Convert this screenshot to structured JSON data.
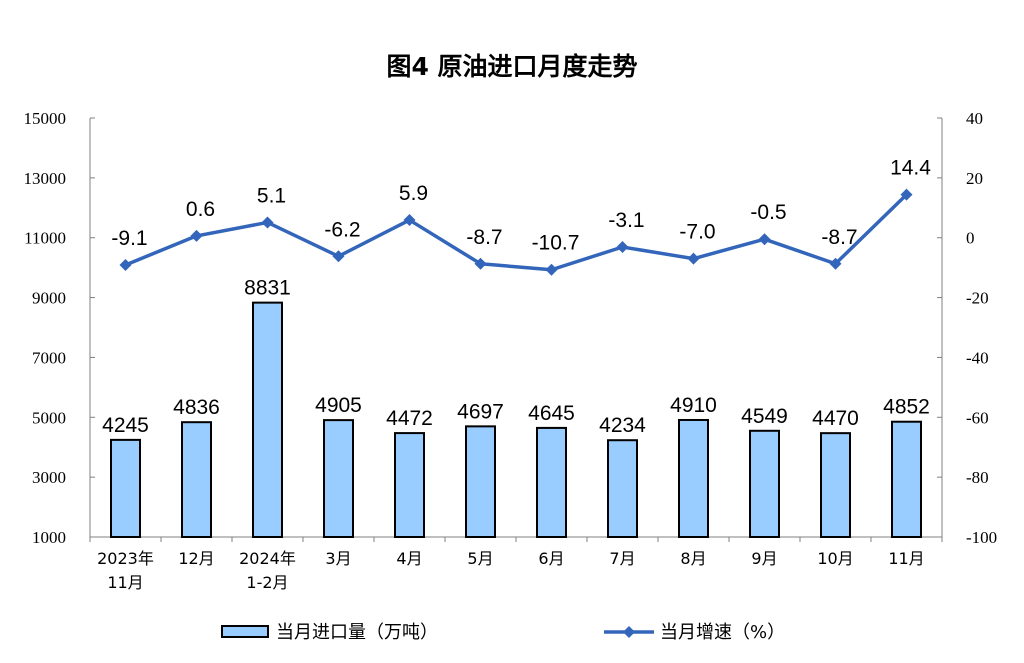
{
  "chart_data": {
    "type": "bar+line",
    "title": "图4  原油进口月度走势",
    "categories": [
      {
        "line1": "2023年",
        "line2": "11月"
      },
      {
        "line1": "12月",
        "line2": ""
      },
      {
        "line1": "2024年",
        "line2": "1-2月"
      },
      {
        "line1": "3月",
        "line2": ""
      },
      {
        "line1": "4月",
        "line2": ""
      },
      {
        "line1": "5月",
        "line2": ""
      },
      {
        "line1": "6月",
        "line2": ""
      },
      {
        "line1": "7月",
        "line2": ""
      },
      {
        "line1": "8月",
        "line2": ""
      },
      {
        "line1": "9月",
        "line2": ""
      },
      {
        "line1": "10月",
        "line2": ""
      },
      {
        "line1": "11月",
        "line2": ""
      }
    ],
    "series": [
      {
        "name": "当月进口量（万吨）",
        "type": "bar",
        "axis": "left",
        "values": [
          4245,
          4836,
          8831,
          4905,
          4472,
          4697,
          4645,
          4234,
          4910,
          4549,
          4470,
          4852
        ],
        "labels": [
          "4245",
          "4836",
          "8831",
          "4905",
          "4472",
          "4697",
          "4645",
          "4234",
          "4910",
          "4549",
          "4470",
          "4852"
        ]
      },
      {
        "name": "当月增速（%）",
        "type": "line",
        "axis": "right",
        "values": [
          -9.1,
          0.6,
          5.1,
          -6.2,
          5.9,
          -8.7,
          -10.7,
          -3.1,
          -7.0,
          -0.5,
          -8.7,
          14.4
        ],
        "labels": [
          "-9.1",
          "0.6",
          "5.1",
          "-6.2",
          "5.9",
          "-8.7",
          "-10.7",
          "-3.1",
          "-7.0",
          "-0.5",
          "-8.7",
          "14.4"
        ]
      }
    ],
    "left_axis": {
      "min": 1000,
      "max": 15000,
      "ticks": [
        "1000",
        "3000",
        "5000",
        "7000",
        "9000",
        "11000",
        "13000",
        "15000"
      ]
    },
    "right_axis": {
      "min": -100,
      "max": 40,
      "ticks": [
        "-100",
        "-80",
        "-60",
        "-40",
        "-20",
        "0",
        "20",
        "40"
      ]
    },
    "legend_position": "bottom",
    "grid": false,
    "colors": {
      "bar_fill": "#99ccff",
      "bar_stroke": "#000000",
      "line": "#3366bb",
      "axis": "#808080"
    }
  }
}
